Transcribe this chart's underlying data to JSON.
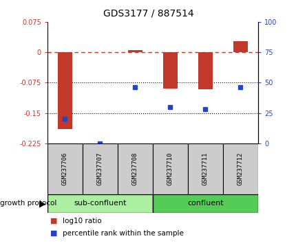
{
  "title": "GDS3177 / 887514",
  "samples": [
    "GSM237706",
    "GSM237707",
    "GSM237708",
    "GSM237710",
    "GSM237711",
    "GSM237712"
  ],
  "log10_ratio": [
    -0.19,
    0.0,
    0.006,
    -0.09,
    -0.092,
    0.028
  ],
  "percentile_rank": [
    20,
    0,
    46,
    30,
    28,
    46
  ],
  "ylim_left": [
    -0.225,
    0.075
  ],
  "ylim_right": [
    0,
    100
  ],
  "yticks_left": [
    0.075,
    0,
    -0.075,
    -0.15,
    -0.225
  ],
  "yticks_right": [
    100,
    75,
    50,
    25,
    0
  ],
  "hlines": [
    -0.075,
    -0.15
  ],
  "bar_color": "#c0392b",
  "dot_color": "#2444c8",
  "zero_line_color": "#c0392b",
  "sub_confluent_color": "#aaf0a0",
  "confluent_color": "#55cc55",
  "legend_items": [
    "log10 ratio",
    "percentile rank within the sample"
  ],
  "bar_width": 0.4
}
